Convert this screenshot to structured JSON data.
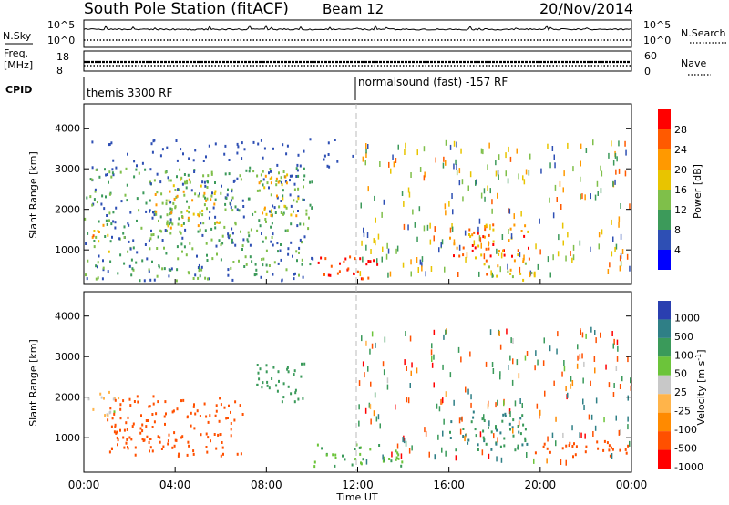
{
  "header": {
    "station": "South Pole Station (fitACF)",
    "beam": "Beam 12",
    "date": "20/Nov/2014"
  },
  "top_panels": {
    "nsky_label": "N.Sky",
    "nsky_ticks": [
      "10^5",
      "10^0"
    ],
    "nsearch_label": "N.Search",
    "freq_label": "Freq.",
    "freq_unit": "[MHz]",
    "freq_ticks": [
      "18",
      "8"
    ],
    "nave_label": "Nave",
    "nave_ticks": [
      "60",
      "0"
    ],
    "cpid_label": "CPID",
    "cpid_segments": [
      "themis 3300 RF",
      "normalsound (fast) -157 RF"
    ]
  },
  "colors": {
    "power_scale": [
      "#0000ff",
      "#2e4fb4",
      "#3c9a5a",
      "#7fbf4a",
      "#e8c400",
      "#ff9900",
      "#ff5a00",
      "#ff0000"
    ],
    "velocity_scale": [
      "#2a3fb0",
      "#2f7f86",
      "#3a9a5a",
      "#6cc43a",
      "#c8c8c8",
      "#ffb44a",
      "#ff8a00",
      "#ff5000",
      "#ff0000"
    ]
  },
  "chart_data": [
    {
      "type": "heatmap",
      "panel": "power",
      "ylabel": "Slant Range [km]",
      "yticks": [
        "1000",
        "2000",
        "3000",
        "4000"
      ],
      "ylim": [
        150,
        4600
      ],
      "xlim": [
        0,
        24
      ],
      "colorbar": {
        "label": "Power [dB]",
        "ticks": [
          "4",
          "8",
          "12",
          "16",
          "20",
          "24",
          "28"
        ],
        "range": [
          0,
          32
        ]
      },
      "regions": [
        {
          "t0": 0.0,
          "t1": 10.0,
          "r0": 200,
          "r1": 3000,
          "dominant_value": 10
        },
        {
          "t0": 0.3,
          "t1": 1.2,
          "r0": 900,
          "r1": 1600,
          "dominant_value": 20
        },
        {
          "t0": 3.0,
          "t1": 6.0,
          "r0": 1500,
          "r1": 2700,
          "dominant_value": 18
        },
        {
          "t0": 7.5,
          "t1": 9.5,
          "r0": 1800,
          "r1": 2900,
          "dominant_value": 18
        },
        {
          "t0": 10.0,
          "t1": 13.0,
          "r0": 250,
          "r1": 800,
          "dominant_value": 30
        },
        {
          "t0": 16.0,
          "t1": 19.5,
          "r0": 700,
          "r1": 1600,
          "dominant_value": 24
        },
        {
          "t0": 17.5,
          "t1": 19.8,
          "r0": 200,
          "r1": 700,
          "dominant_value": 20
        }
      ]
    },
    {
      "type": "heatmap",
      "panel": "velocity",
      "ylabel": "Slant Range [km]",
      "yticks": [
        "1000",
        "2000",
        "3000",
        "4000"
      ],
      "ylim": [
        150,
        4600
      ],
      "xlim": [
        0,
        24
      ],
      "colorbar": {
        "label": "Velocity [m s^-1]",
        "ticks": [
          "1000",
          "500",
          "100",
          "50",
          "25",
          "-25",
          "-100",
          "-500",
          "-1000"
        ]
      },
      "regions": [
        {
          "t0": 0.0,
          "t1": 1.5,
          "r0": 1500,
          "r1": 2100,
          "dominant_value": 25
        },
        {
          "t0": 1.0,
          "t1": 7.0,
          "r0": 500,
          "r1": 2000,
          "dominant_value": -200
        },
        {
          "t0": 7.5,
          "t1": 9.7,
          "r0": 1800,
          "r1": 2800,
          "dominant_value": 300
        },
        {
          "t0": 10.0,
          "t1": 14.0,
          "r0": 250,
          "r1": 800,
          "dominant_value": 100
        },
        {
          "t0": 16.0,
          "t1": 19.5,
          "r0": 600,
          "r1": 1600,
          "dominant_value": 500
        },
        {
          "t0": 19.5,
          "t1": 24.0,
          "r0": 500,
          "r1": 900,
          "dominant_value": -300
        }
      ]
    }
  ],
  "xaxis": {
    "ticks": [
      "00:00",
      "04:00",
      "08:00",
      "12:00",
      "16:00",
      "20:00",
      "00:00"
    ],
    "label": "Time UT"
  }
}
